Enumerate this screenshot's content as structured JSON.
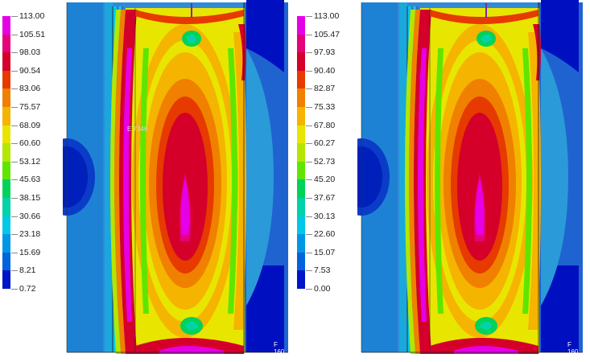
{
  "panels": [
    {
      "legend": {
        "values": [
          "113.00",
          "105.51",
          "98.03",
          "90.54",
          "83.06",
          "75.57",
          "68.09",
          "60.60",
          "53.12",
          "45.63",
          "38.15",
          "30.66",
          "23.18",
          "15.69",
          "8.21",
          "0.72"
        ]
      },
      "element_label": "E 7346",
      "node_label": "F 160"
    },
    {
      "legend": {
        "values": [
          "113.00",
          "105.47",
          "97.93",
          "90.40",
          "82.87",
          "75.33",
          "67.80",
          "60.27",
          "52.73",
          "45.20",
          "37.67",
          "30.13",
          "22.60",
          "15.07",
          "7.53",
          "0.00"
        ]
      },
      "node_label": "F 160"
    }
  ],
  "colors": {
    "band_1": "#e600e6",
    "band_2": "#e6007a",
    "band_3": "#d4002a",
    "band_4": "#e63a00",
    "band_5": "#f08000",
    "band_6": "#f5b400",
    "band_7": "#e8e600",
    "band_8": "#b4e600",
    "band_9": "#5ee600",
    "band_10": "#00d25a",
    "band_11": "#00d2aa",
    "band_12": "#00c8e6",
    "band_13": "#0096e6",
    "band_14": "#0064dc",
    "band_15": "#0014c8"
  }
}
